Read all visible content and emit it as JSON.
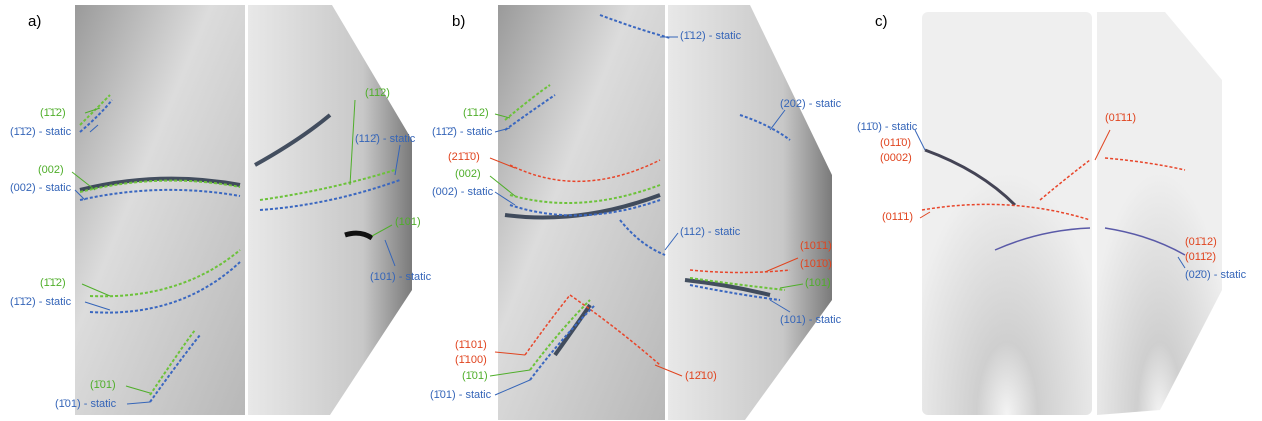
{
  "panels": [
    {
      "label": "a)",
      "annotations": [
        "(1̄1̄2)",
        "(1̄1̄2) - static",
        "(002)",
        "(002) - static",
        "(11̄2)",
        "(112̄) - static",
        "(101)",
        "(101) - static",
        "(1̄1̄2)",
        "(1̄1̄2) - static",
        "(1̄01)",
        "(1̄01) - static"
      ]
    },
    {
      "label": "b)",
      "annotations": [
        "(1̄12) - static",
        "(1̄12)",
        "(11̄2̄) - static",
        "(21̄1̄0)",
        "(002)",
        "(002) - static",
        "(202) - static",
        "(112) - static",
        "(101̄1)",
        "(101̄0)",
        "(101)",
        "(101) - static",
        "(1̄101)",
        "(1̄100)",
        "(1̄01)",
        "(1̄01) - static",
        "(12̄10)"
      ]
    },
    {
      "label": "c)",
      "annotations": [
        "(11̄0) - static",
        "(011̄0)",
        "(0002)",
        "(01̄11)",
        "(011̄1)",
        "(01̄12)",
        "(011̄2)",
        "(02̄0) - static"
      ]
    }
  ]
}
